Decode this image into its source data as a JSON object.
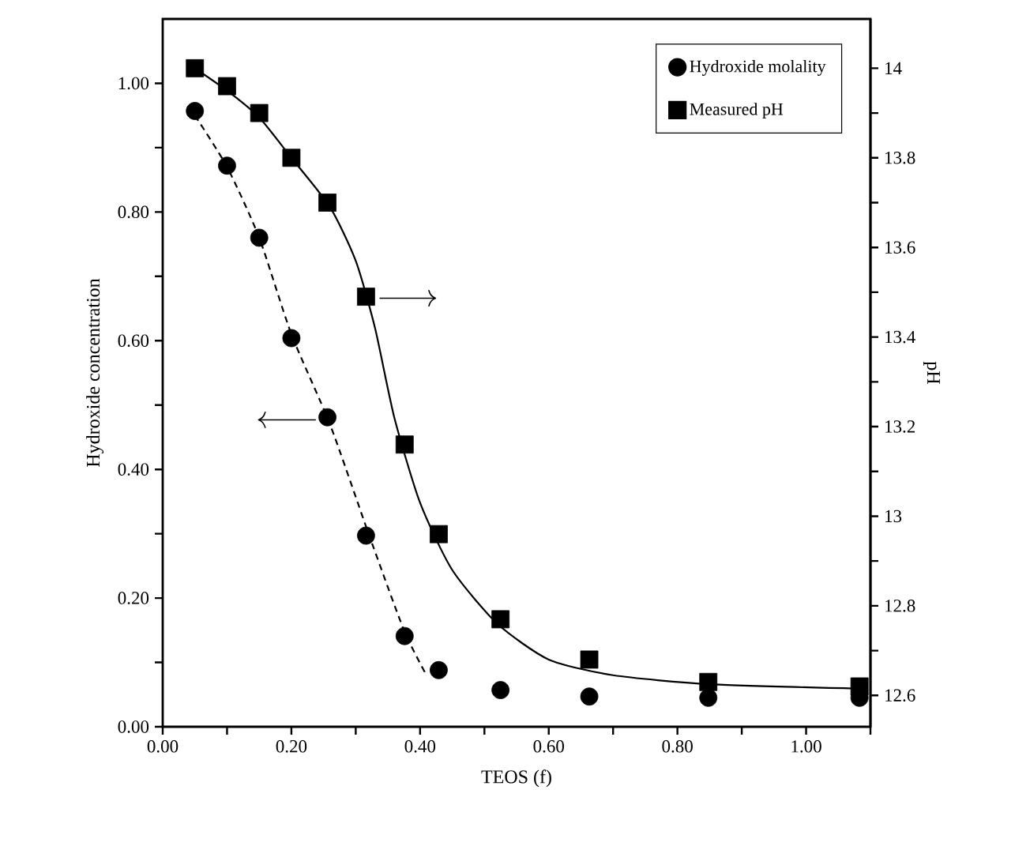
{
  "chart_data": {
    "type": "scatter",
    "xlabel": "TEOS (f)",
    "ylabel": "Hydroxide concentration",
    "y2label": "pH",
    "xlim": [
      0,
      1.1
    ],
    "ylim": [
      0,
      1.1
    ],
    "y2lim": [
      12.53,
      14.11
    ],
    "xticks": [
      {
        "value": 0,
        "label": "0.00"
      },
      {
        "value": 0.1,
        "label": null
      },
      {
        "value": 0.2,
        "label": "0.20"
      },
      {
        "value": 0.3,
        "label": null
      },
      {
        "value": 0.4,
        "label": "0.40"
      },
      {
        "value": 0.5,
        "label": null
      },
      {
        "value": 0.6,
        "label": "0.60"
      },
      {
        "value": 0.7,
        "label": null
      },
      {
        "value": 0.8,
        "label": "0.80"
      },
      {
        "value": 0.9,
        "label": null
      },
      {
        "value": 1.0,
        "label": "1.00"
      },
      {
        "value": 1.1,
        "label": null
      }
    ],
    "yticks": [
      {
        "value": 0,
        "label": "0.00"
      },
      {
        "value": 0.1,
        "label": null
      },
      {
        "value": 0.2,
        "label": "0.20"
      },
      {
        "value": 0.3,
        "label": null
      },
      {
        "value": 0.4,
        "label": "0.40"
      },
      {
        "value": 0.5,
        "label": null
      },
      {
        "value": 0.6,
        "label": "0.60"
      },
      {
        "value": 0.7,
        "label": null
      },
      {
        "value": 0.8,
        "label": "0.80"
      },
      {
        "value": 0.9,
        "label": null
      },
      {
        "value": 1.0,
        "label": "1.00"
      }
    ],
    "y2ticks": [
      12.6,
      {
        "value": 12.7,
        "label": null
      },
      12.8,
      {
        "value": 12.9,
        "label": null
      },
      13,
      {
        "value": 13.1,
        "label": null
      },
      13.2,
      {
        "value": 13.3,
        "label": null
      },
      13.4,
      {
        "value": 13.5,
        "label": null
      },
      13.6,
      {
        "value": 13.7,
        "label": null
      },
      13.8,
      {
        "value": 13.9,
        "label": null
      },
      14
    ],
    "legend": "top right",
    "grid": false,
    "series": [
      {
        "name": "Hydroxide molality",
        "color": "#000000",
        "marker": "circle",
        "x": [
          0.05,
          0.1,
          0.15,
          0.2,
          0.256,
          0.316,
          0.376,
          0.429,
          0.525,
          0.663,
          0.848,
          1.083
        ],
        "values": [
          0.957,
          0.872,
          0.76,
          0.604,
          0.481,
          0.297,
          0.141,
          0.088,
          0.057,
          0.047,
          0.045,
          0.045
        ]
      },
      {
        "name": "Measured pH",
        "color": "#000000",
        "marker": "square",
        "axis": "y2",
        "x": [
          0.05,
          0.1,
          0.15,
          0.2,
          0.256,
          0.316,
          0.376,
          0.429,
          0.525,
          0.663,
          0.848,
          1.083
        ],
        "values": [
          14.0,
          13.96,
          13.9,
          13.8,
          13.7,
          13.49,
          13.16,
          12.96,
          12.77,
          12.68,
          12.63,
          12.62
        ]
      },
      {
        "type": "line",
        "color": "#000000",
        "line_style": "dashed",
        "x": [
          0.05,
          0.1,
          0.15,
          0.2,
          0.26,
          0.32,
          0.375,
          0.41
        ],
        "values": [
          0.95,
          0.87,
          0.76,
          0.61,
          0.47,
          0.3,
          0.15,
          0.08
        ]
      },
      {
        "type": "line",
        "color": "#000000",
        "line_style": "solid",
        "axis": "y2",
        "x": [
          0.05,
          0.1,
          0.15,
          0.2,
          0.26,
          0.3,
          0.33,
          0.36,
          0.4,
          0.45,
          0.52,
          0.6,
          0.7,
          0.85,
          1.083
        ],
        "values": [
          14.0,
          13.95,
          13.89,
          13.8,
          13.69,
          13.57,
          13.42,
          13.22,
          13.03,
          12.88,
          12.76,
          12.68,
          12.645,
          12.625,
          12.615
        ]
      }
    ]
  }
}
